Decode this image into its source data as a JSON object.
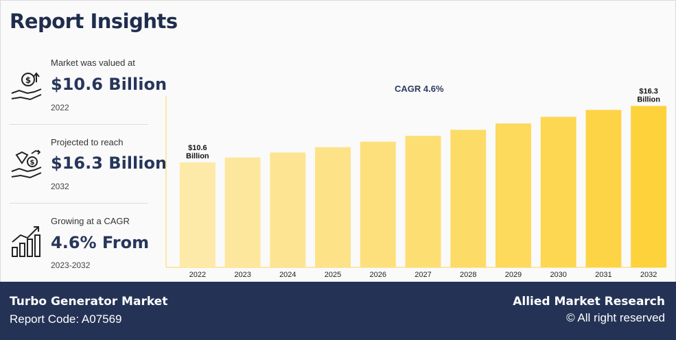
{
  "header": {
    "title": "Report Insights"
  },
  "stats": [
    {
      "label": "Market was valued at",
      "value": "$10.6 Billion",
      "sub": "2022",
      "icon": "money-bag-hand-icon"
    },
    {
      "label": "Projected to reach",
      "value": "$16.3 Billion",
      "sub": "2032",
      "icon": "diamond-coin-hand-icon"
    },
    {
      "label": "Growing at a CAGR",
      "value": "4.6% From",
      "sub": "2023-2032",
      "icon": "growth-bars-icon"
    }
  ],
  "chart_data": {
    "type": "bar",
    "title": "CAGR 4.6%",
    "categories": [
      "2022",
      "2023",
      "2024",
      "2025",
      "2026",
      "2027",
      "2028",
      "2029",
      "2030",
      "2031",
      "2032"
    ],
    "values": [
      10.6,
      11.09,
      11.6,
      12.13,
      12.69,
      13.28,
      13.89,
      14.53,
      15.2,
      15.9,
      16.3
    ],
    "data_labels": [
      {
        "index": 0,
        "lines": [
          "$10.6",
          "Billion"
        ]
      },
      {
        "index": 10,
        "lines": [
          "$16.3",
          "Billion"
        ]
      }
    ],
    "ylim": [
      0,
      18
    ],
    "xlabel": "",
    "ylabel": "",
    "colors": {
      "start": "#fde9a8",
      "end": "#fdd23b",
      "axis": "#fbe6a6"
    }
  },
  "footer": {
    "title": "Turbo Generator Market",
    "code": "Report Code: A07569",
    "brand": "Allied Market Research",
    "rights": "© All right reserved"
  }
}
